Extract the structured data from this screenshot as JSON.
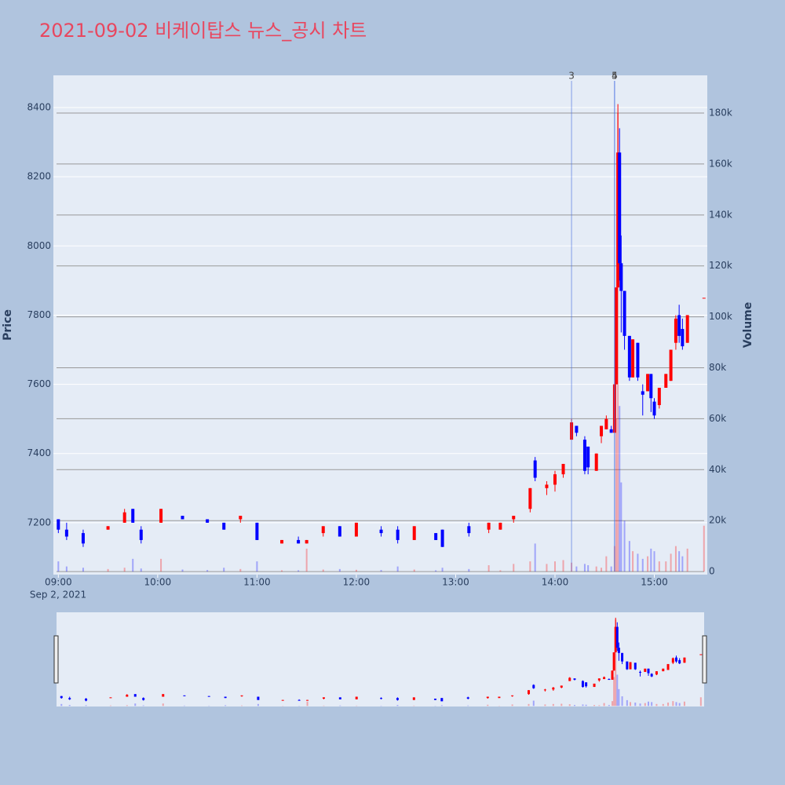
{
  "chart_data": {
    "type": "candlestick",
    "title": "2021-09-02 비케이탑스 뉴스_공시 차트",
    "y_title": "Price",
    "y2_title": "Volume",
    "x_date_label": "Sep 2, 2021",
    "increasing_color": "#ff0000",
    "decreasing_color": "#0000ff",
    "x": [
      "09:00",
      "09:05",
      "09:15",
      "09:30",
      "09:40",
      "09:45",
      "09:50",
      "10:02",
      "10:15",
      "10:30",
      "10:40",
      "10:50",
      "11:00",
      "11:15",
      "11:25",
      "11:30",
      "11:40",
      "11:50",
      "12:00",
      "12:15",
      "12:25",
      "12:35",
      "12:48",
      "12:52",
      "13:08",
      "13:20",
      "13:27",
      "13:35",
      "13:45",
      "13:48",
      "13:55",
      "14:00",
      "14:05",
      "14:10",
      "14:13",
      "14:18",
      "14:20",
      "14:25",
      "14:28",
      "14:31",
      "14:34",
      "14:36",
      "14:37",
      "14:38",
      "14:39",
      "14:40",
      "14:42",
      "14:45",
      "14:47",
      "14:50",
      "14:53",
      "14:56",
      "14:58",
      "15:00",
      "15:03",
      "15:07",
      "15:10",
      "15:13",
      "15:15",
      "15:17",
      "15:20",
      "15:30"
    ],
    "open": [
      7210,
      7180,
      7170,
      7180,
      7200,
      7240,
      7180,
      7200,
      7220,
      7210,
      7200,
      7210,
      7200,
      7140,
      7150,
      7140,
      7170,
      7190,
      7160,
      7180,
      7180,
      7150,
      7170,
      7180,
      7190,
      7180,
      7180,
      7210,
      7240,
      7380,
      7300,
      7310,
      7340,
      7440,
      7480,
      7440,
      7420,
      7350,
      7450,
      7470,
      7470,
      7460,
      7600,
      7880,
      8270,
      7950,
      7870,
      7740,
      7620,
      7720,
      7580,
      7580,
      7630,
      7550,
      7540,
      7590,
      7610,
      7720,
      7800,
      7760,
      7720,
      7850
    ],
    "high": [
      7210,
      7200,
      7180,
      7190,
      7240,
      7240,
      7190,
      7240,
      7220,
      7210,
      7200,
      7220,
      7200,
      7150,
      7160,
      7150,
      7190,
      7190,
      7200,
      7190,
      7190,
      7190,
      7170,
      7180,
      7200,
      7200,
      7200,
      7220,
      7300,
      7390,
      7320,
      7350,
      7370,
      7500,
      7480,
      7450,
      7420,
      7400,
      7480,
      7510,
      7480,
      7600,
      7880,
      8410,
      8340,
      8030,
      7870,
      7740,
      7730,
      7720,
      7600,
      7630,
      7630,
      7560,
      7590,
      7630,
      7700,
      7800,
      7830,
      7790,
      7800,
      7850
    ],
    "low": [
      7170,
      7150,
      7130,
      7180,
      7200,
      7200,
      7140,
      7200,
      7210,
      7200,
      7180,
      7200,
      7150,
      7140,
      7140,
      7140,
      7160,
      7160,
      7160,
      7160,
      7140,
      7150,
      7150,
      7130,
      7160,
      7170,
      7180,
      7200,
      7230,
      7320,
      7280,
      7290,
      7330,
      7440,
      7450,
      7340,
      7340,
      7350,
      7430,
      7470,
      7460,
      7460,
      7600,
      7880,
      7900,
      7750,
      7700,
      7610,
      7620,
      7610,
      7510,
      7580,
      7520,
      7500,
      7530,
      7590,
      7610,
      7700,
      7720,
      7700,
      7720,
      7850
    ],
    "close": [
      7180,
      7160,
      7140,
      7190,
      7230,
      7200,
      7150,
      7240,
      7210,
      7200,
      7180,
      7220,
      7150,
      7150,
      7140,
      7150,
      7190,
      7160,
      7200,
      7170,
      7150,
      7190,
      7150,
      7130,
      7170,
      7200,
      7200,
      7220,
      7300,
      7330,
      7310,
      7340,
      7370,
      7490,
      7460,
      7350,
      7360,
      7400,
      7480,
      7500,
      7460,
      7600,
      7880,
      8270,
      7950,
      7870,
      7740,
      7620,
      7730,
      7620,
      7570,
      7630,
      7560,
      7510,
      7590,
      7630,
      7700,
      7790,
      7740,
      7710,
      7800,
      7850
    ],
    "volume": [
      4000,
      2000,
      1500,
      1000,
      1500,
      5000,
      1200,
      5000,
      800,
      600,
      1500,
      1000,
      4000,
      500,
      500,
      9000,
      800,
      1000,
      700,
      600,
      2000,
      800,
      500,
      1500,
      1000,
      2500,
      500,
      3000,
      4000,
      11000,
      3000,
      4000,
      4500,
      3500,
      2000,
      3000,
      2500,
      2000,
      1500,
      6000,
      2000,
      10000,
      60000,
      180000,
      65000,
      35000,
      20000,
      12000,
      8000,
      7000,
      5000,
      6000,
      9000,
      8000,
      4000,
      4000,
      7000,
      10000,
      8000,
      6000,
      9000,
      18000
    ],
    "annotations": [
      {
        "x": "14:10",
        "label": "3"
      },
      {
        "x": "14:36",
        "label": "4"
      },
      {
        "x": "14:36",
        "label": "5"
      }
    ],
    "xlim": [
      "08:57",
      "15:32"
    ],
    "xticks": [
      "09:00",
      "10:00",
      "11:00",
      "12:00",
      "13:00",
      "14:00",
      "15:00"
    ],
    "ylim": [
      7050,
      8493
    ],
    "yticks": [
      7200,
      7400,
      7600,
      7800,
      8000,
      8200,
      8400
    ],
    "y2lim": [
      -1200,
      194800
    ],
    "y2ticks": [
      0,
      {
        "value": 20000,
        "label": "20k"
      },
      {
        "value": 40000,
        "label": "40k"
      },
      {
        "value": 60000,
        "label": "60k"
      },
      {
        "value": 80000,
        "label": "80k"
      },
      {
        "value": 100000,
        "label": "100k"
      },
      {
        "value": 120000,
        "label": "120k"
      },
      {
        "value": 140000,
        "label": "140k"
      },
      {
        "value": 160000,
        "label": "160k"
      },
      {
        "value": 180000,
        "label": "180k"
      }
    ]
  }
}
